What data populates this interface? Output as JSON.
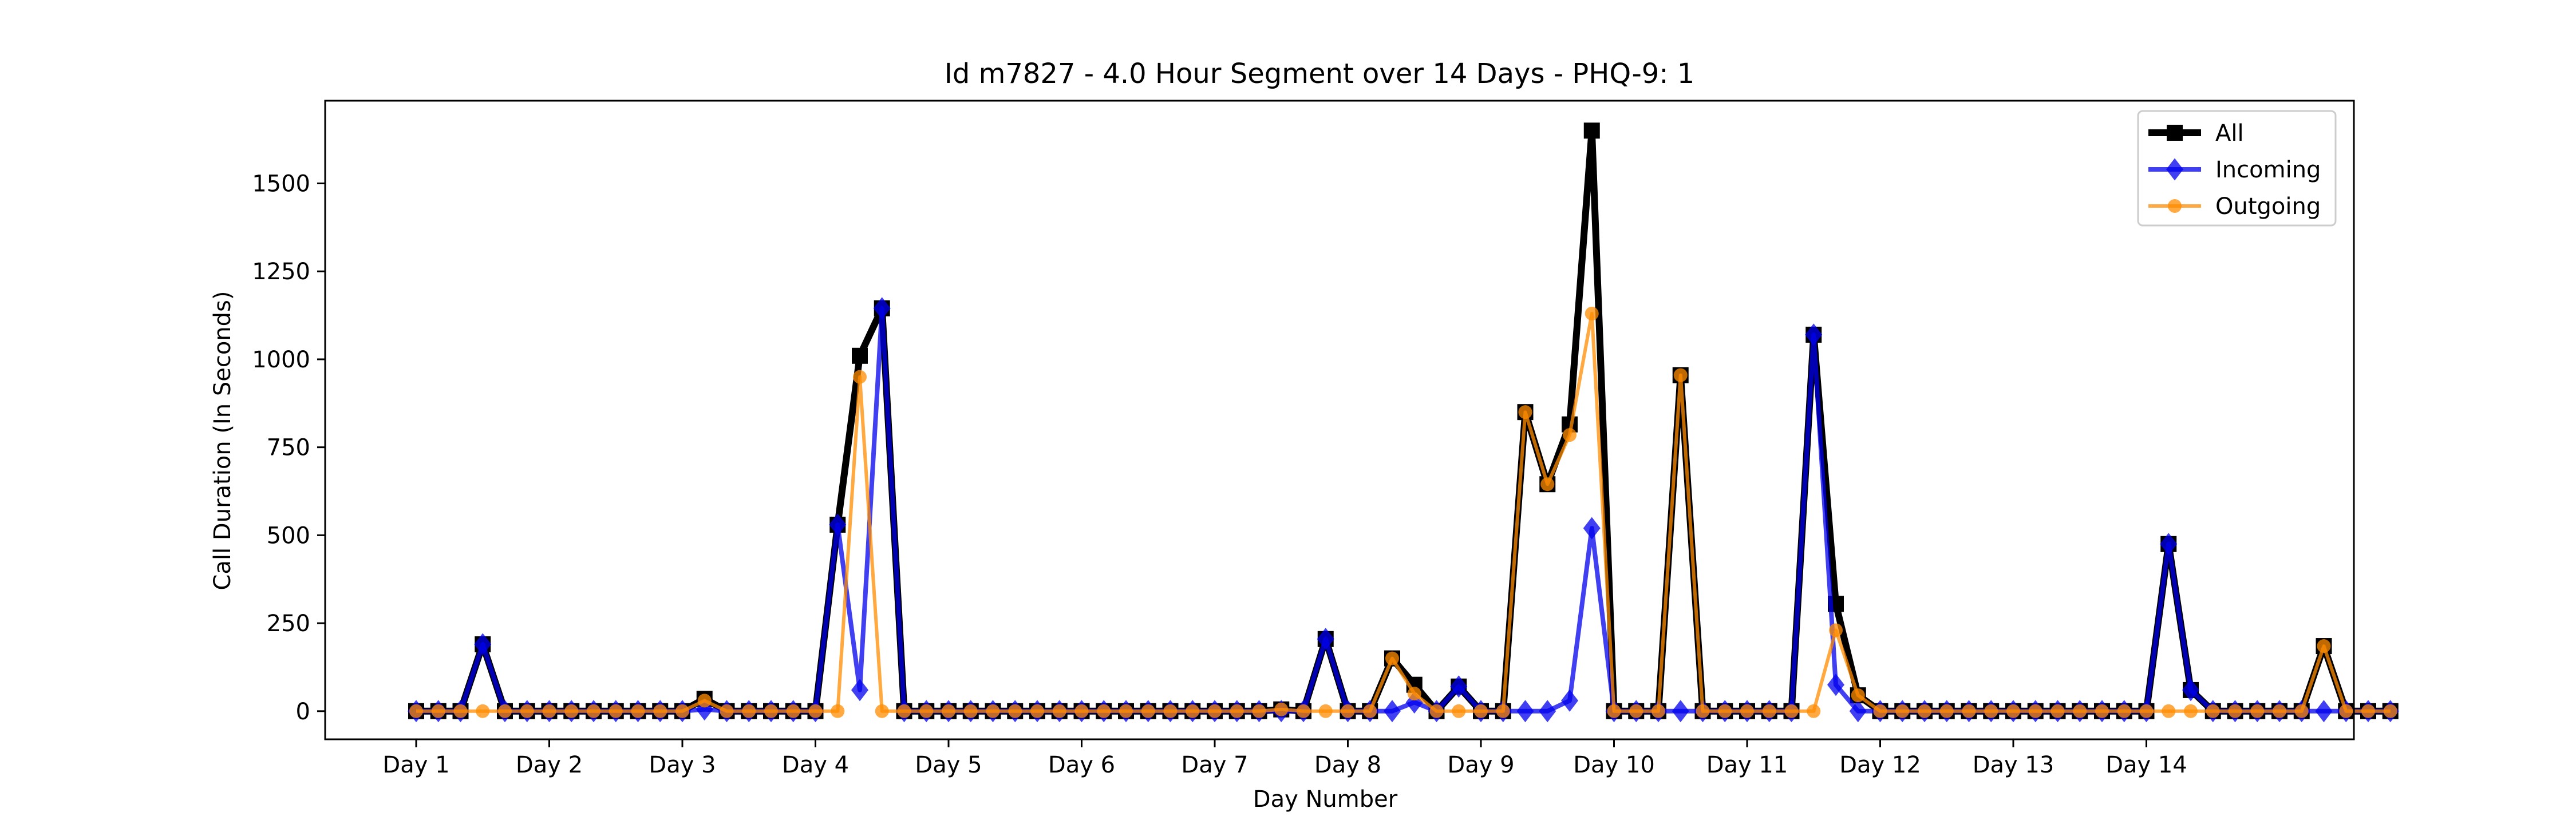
{
  "chart_data": {
    "type": "line",
    "title": "Id m7827 - 4.0 Hour Segment over 14 Days - PHQ-9: 1",
    "xlabel": "Day Number",
    "ylabel": "Call Duration (In Seconds)",
    "xticks": [
      "Day 1",
      "Day 2",
      "Day 3",
      "Day 4",
      "Day 5",
      "Day 6",
      "Day 7",
      "Day 8",
      "Day 9",
      "Day 10",
      "Day 11",
      "Day 12",
      "Day 13",
      "Day 14"
    ],
    "yticks": [
      0,
      250,
      500,
      750,
      1000,
      1250,
      1500
    ],
    "ylim": [
      -80,
      1735
    ],
    "points_per_day": 6,
    "legend_position": "top-right",
    "series": [
      {
        "name": "All",
        "color": "#000000",
        "marker": "square",
        "values": [
          0,
          0,
          0,
          190,
          0,
          0,
          0,
          0,
          0,
          0,
          0,
          0,
          0,
          35,
          0,
          0,
          0,
          0,
          0,
          530,
          1010,
          1145,
          0,
          0,
          0,
          0,
          0,
          0,
          0,
          0,
          0,
          0,
          0,
          0,
          0,
          0,
          0,
          0,
          0,
          5,
          0,
          205,
          0,
          0,
          150,
          75,
          0,
          70,
          0,
          0,
          850,
          645,
          815,
          1650,
          0,
          0,
          0,
          955,
          0,
          0,
          0,
          0,
          0,
          1070,
          305,
          45,
          0,
          0,
          0,
          0,
          0,
          0,
          0,
          0,
          0,
          0,
          0,
          0,
          0,
          475,
          60,
          0,
          0,
          0,
          0,
          0,
          185,
          0,
          0,
          0
        ]
      },
      {
        "name": "Incoming",
        "color": "#0000ee",
        "marker": "diamond",
        "values": [
          0,
          0,
          0,
          190,
          0,
          0,
          0,
          0,
          0,
          0,
          0,
          0,
          0,
          5,
          0,
          0,
          0,
          0,
          0,
          530,
          60,
          1145,
          0,
          0,
          0,
          0,
          0,
          0,
          0,
          0,
          0,
          0,
          0,
          0,
          0,
          0,
          0,
          0,
          0,
          0,
          0,
          205,
          0,
          0,
          0,
          25,
          0,
          70,
          0,
          0,
          0,
          0,
          30,
          520,
          0,
          0,
          0,
          0,
          0,
          0,
          0,
          0,
          0,
          1070,
          75,
          0,
          0,
          0,
          0,
          0,
          0,
          0,
          0,
          0,
          0,
          0,
          0,
          0,
          0,
          475,
          60,
          0,
          0,
          0,
          0,
          0,
          0,
          0,
          0,
          0
        ]
      },
      {
        "name": "Outgoing",
        "color": "#ff8c00",
        "marker": "circle",
        "values": [
          0,
          0,
          0,
          0,
          0,
          0,
          0,
          0,
          0,
          0,
          0,
          0,
          0,
          30,
          0,
          0,
          0,
          0,
          0,
          0,
          950,
          0,
          0,
          0,
          0,
          0,
          0,
          0,
          0,
          0,
          0,
          0,
          0,
          0,
          0,
          0,
          0,
          0,
          0,
          5,
          0,
          0,
          0,
          0,
          150,
          50,
          0,
          0,
          0,
          0,
          850,
          645,
          785,
          1130,
          0,
          0,
          0,
          955,
          0,
          0,
          0,
          0,
          0,
          0,
          230,
          45,
          0,
          0,
          0,
          0,
          0,
          0,
          0,
          0,
          0,
          0,
          0,
          0,
          0,
          0,
          0,
          0,
          0,
          0,
          0,
          0,
          185,
          0,
          0,
          0
        ]
      }
    ]
  }
}
